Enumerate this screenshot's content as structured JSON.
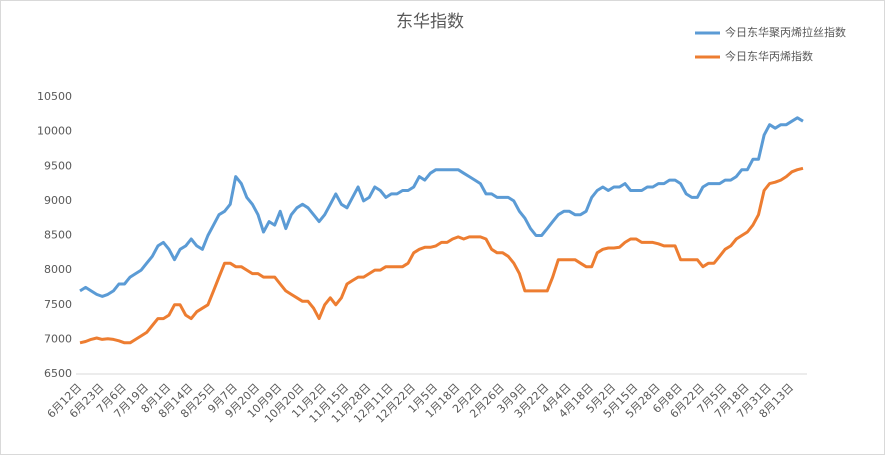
{
  "chart_data": {
    "type": "line",
    "title": "东华指数",
    "categories": [
      "6月12日",
      null,
      null,
      null,
      "6月23日",
      null,
      null,
      null,
      "7月6日",
      null,
      null,
      null,
      "7月19日",
      null,
      null,
      null,
      "8月1日",
      null,
      null,
      null,
      "8月14日",
      null,
      null,
      null,
      "8月25日",
      null,
      null,
      null,
      "9月7日",
      null,
      null,
      null,
      "9月20日",
      null,
      null,
      null,
      "10月9日",
      null,
      null,
      null,
      "10月20日",
      null,
      null,
      null,
      "11月2日",
      null,
      null,
      null,
      "11月15日",
      null,
      null,
      null,
      "11月28日",
      null,
      null,
      null,
      "12月11日",
      null,
      null,
      null,
      "12月22日",
      null,
      null,
      null,
      "1月5日",
      null,
      null,
      null,
      "1月18日",
      null,
      null,
      null,
      "2月2日",
      null,
      null,
      null,
      "2月26日",
      null,
      null,
      null,
      "3月9日",
      null,
      null,
      null,
      "3月22日",
      null,
      null,
      null,
      "4月4日",
      null,
      null,
      null,
      "4月18日",
      null,
      null,
      null,
      "5月2日",
      null,
      null,
      null,
      "5月15日",
      null,
      null,
      null,
      "5月28日",
      null,
      null,
      null,
      "6月8日",
      null,
      null,
      null,
      "6月22日",
      null,
      null,
      null,
      "7月5日",
      null,
      null,
      null,
      "7月18日",
      null,
      null,
      null,
      "7月31日",
      null,
      null,
      null,
      "8月13日",
      null,
      null
    ],
    "series": [
      {
        "name": "今日东华聚丙烯拉丝指数",
        "color": "#5b9bd5",
        "values": [
          7700,
          7750,
          7700,
          7650,
          7620,
          7650,
          7700,
          7800,
          7800,
          7900,
          7950,
          8000,
          8100,
          8200,
          8350,
          8400,
          8300,
          8150,
          8300,
          8350,
          8450,
          8350,
          8300,
          8500,
          8650,
          8800,
          8850,
          8950,
          9350,
          9250,
          9050,
          8950,
          8800,
          8550,
          8700,
          8650,
          8850,
          8600,
          8800,
          8900,
          8950,
          8900,
          8800,
          8700,
          8800,
          8950,
          9100,
          8950,
          8900,
          9050,
          9200,
          9000,
          9050,
          9200,
          9150,
          9050,
          9100,
          9100,
          9150,
          9150,
          9200,
          9350,
          9300,
          9400,
          9450,
          9450,
          9450,
          9450,
          9450,
          9400,
          9350,
          9300,
          9250,
          9100,
          9100,
          9050,
          9050,
          9050,
          9000,
          8850,
          8750,
          8600,
          8500,
          8500,
          8600,
          8700,
          8800,
          8850,
          8850,
          8800,
          8800,
          8850,
          9050,
          9150,
          9200,
          9150,
          9200,
          9200,
          9250,
          9150,
          9150,
          9150,
          9200,
          9200,
          9250,
          9250,
          9300,
          9300,
          9250,
          9100,
          9050,
          9050,
          9200,
          9250,
          9250,
          9250,
          9300,
          9300,
          9350,
          9450,
          9450,
          9600,
          9600,
          9950,
          10100,
          10050,
          10100,
          10100,
          10150,
          10200,
          10150
        ]
      },
      {
        "name": "今日东华丙烯指数",
        "color": "#ed7d31",
        "values": [
          6950,
          6970,
          7000,
          7020,
          7000,
          7010,
          7000,
          6980,
          6950,
          6950,
          7000,
          7050,
          7100,
          7200,
          7300,
          7300,
          7350,
          7500,
          7500,
          7350,
          7300,
          7400,
          7450,
          7500,
          7700,
          7900,
          8100,
          8100,
          8050,
          8050,
          8000,
          7950,
          7950,
          7900,
          7900,
          7900,
          7800,
          7700,
          7650,
          7600,
          7550,
          7550,
          7450,
          7300,
          7500,
          7600,
          7500,
          7600,
          7800,
          7850,
          7900,
          7900,
          7950,
          8000,
          8000,
          8050,
          8050,
          8050,
          8050,
          8100,
          8250,
          8300,
          8330,
          8330,
          8350,
          8400,
          8400,
          8450,
          8480,
          8450,
          8480,
          8480,
          8480,
          8450,
          8300,
          8250,
          8250,
          8200,
          8100,
          7950,
          7700,
          7700,
          7700,
          7700,
          7700,
          7900,
          8150,
          8150,
          8150,
          8150,
          8100,
          8050,
          8050,
          8250,
          8300,
          8320,
          8320,
          8330,
          8400,
          8450,
          8450,
          8400,
          8400,
          8400,
          8380,
          8350,
          8350,
          8350,
          8150,
          8150,
          8150,
          8150,
          8050,
          8100,
          8100,
          8200,
          8300,
          8350,
          8450,
          8500,
          8550,
          8650,
          8800,
          9150,
          9250,
          9270,
          9300,
          9350,
          9420,
          9450,
          9470
        ]
      }
    ],
    "ylim": [
      6500,
      10500
    ],
    "yticks": [
      6500,
      7000,
      7500,
      8000,
      8500,
      9000,
      9500,
      10000,
      10500
    ],
    "grid": false,
    "legend": "top-right"
  }
}
